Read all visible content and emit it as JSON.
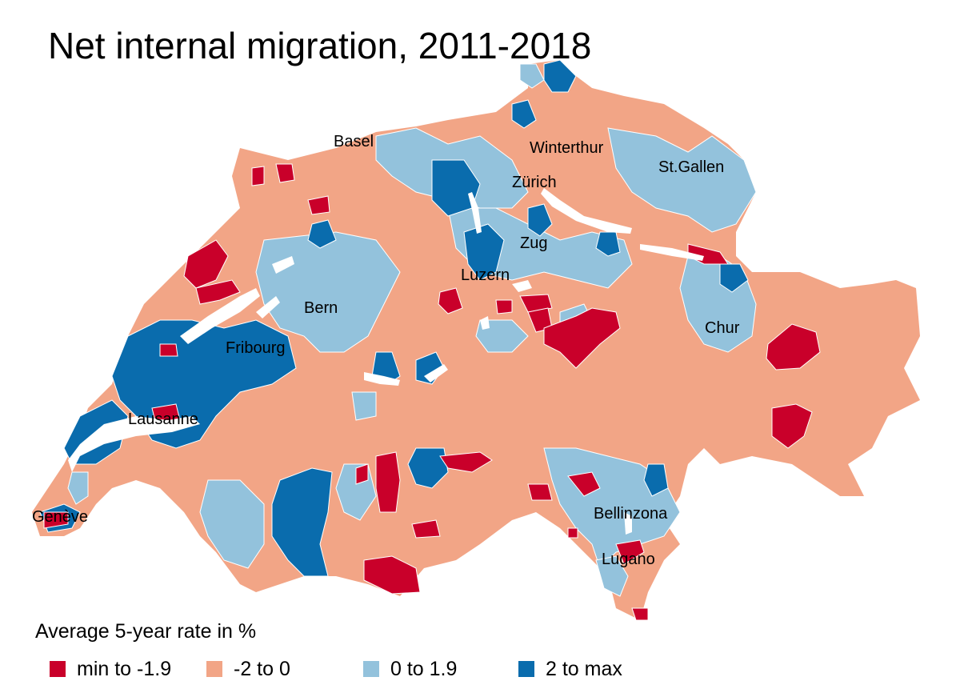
{
  "title": "Net internal migration, 2011-2018",
  "legend": {
    "title": "Average 5-year rate in %",
    "items": [
      {
        "label": "min to -1.9",
        "color": "#c9002a"
      },
      {
        "label": "-2 to 0",
        "color": "#f2a586"
      },
      {
        "label": "0 to 1.9",
        "color": "#93c2dc"
      },
      {
        "label": "2 to max",
        "color": "#0a6cad"
      }
    ]
  },
  "cities": [
    "Basel",
    "Winterthur",
    "St.Gallen",
    "Zürich",
    "Zug",
    "Luzern",
    "Bern",
    "Chur",
    "Fribourg",
    "Lausanne",
    "Bellinzona",
    "Lugano",
    "Genève"
  ],
  "colors": {
    "lake": "#ffffff",
    "border": "#ffffff"
  }
}
